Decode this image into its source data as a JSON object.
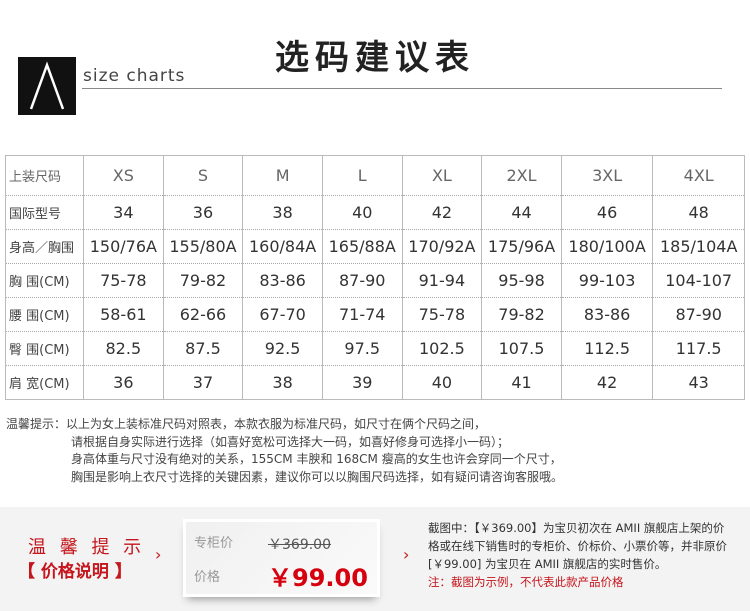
{
  "header": {
    "title": "选码建议表",
    "subtitle": "size charts"
  },
  "table": {
    "header": {
      "label": "上装尺码",
      "values": [
        "XS",
        "S",
        "M",
        "L",
        "XL",
        "2XL",
        "3XL",
        "4XL"
      ]
    },
    "rows": [
      {
        "label": "国际型号",
        "values": [
          "34",
          "36",
          "38",
          "40",
          "42",
          "44",
          "46",
          "48"
        ]
      },
      {
        "label": "身高／胸围",
        "values": [
          "150/76A",
          "155/80A",
          "160/84A",
          "165/88A",
          "170/92A",
          "175/96A",
          "180/100A",
          "185/104A"
        ]
      },
      {
        "label": "胸 围(CM)",
        "values": [
          "75-78",
          "79-82",
          "83-86",
          "87-90",
          "91-94",
          "95-98",
          "99-103",
          "104-107"
        ]
      },
      {
        "label": "腰 围(CM)",
        "values": [
          "58-61",
          "62-66",
          "67-70",
          "71-74",
          "75-78",
          "79-82",
          "83-86",
          "87-90"
        ]
      },
      {
        "label": "臀 围(CM)",
        "values": [
          "82.5",
          "87.5",
          "92.5",
          "97.5",
          "102.5",
          "107.5",
          "112.5",
          "117.5"
        ]
      },
      {
        "label": "肩 宽(CM)",
        "values": [
          "36",
          "37",
          "38",
          "39",
          "40",
          "41",
          "42",
          "43"
        ]
      }
    ]
  },
  "notes": {
    "prefix": "温馨提示：",
    "lines": [
      "以上为女上装标准尺码对照表，本款衣服为标准尺码，如尺寸在俩个尺码之间，",
      "请根据自身实际进行选择（如喜好宽松可选择大一码，如喜好修身可选择小一码）；",
      "身高体重与尺寸没有绝对的关系，155CM 丰腴和 168CM 瘦高的女生也许会穿同一个尺寸，",
      "胸围是影响上衣尺寸选择的关键因素，建议你可以以胸围尺码选择，如有疑问请咨询客服哦。"
    ]
  },
  "price": {
    "heading": "温 馨 提 示",
    "subheading": "【 价格说明 】",
    "counter_label": "专柜价",
    "counter_price": "￥369.00",
    "price_label": "价格",
    "price": "￥99.00",
    "arrow": "›",
    "desc": [
      "截图中：【￥369.00】为宝贝初次在 AMII 旗舰店上架的价",
      "格或在线下销售时的专柜价、价标价、小票价等，并非原价",
      "[￥99.00] 为宝贝在 AMII 旗舰店的实时售价。"
    ],
    "note": "注：截图为示例，不代表此款产品价格",
    "accent": "#c5161d"
  }
}
